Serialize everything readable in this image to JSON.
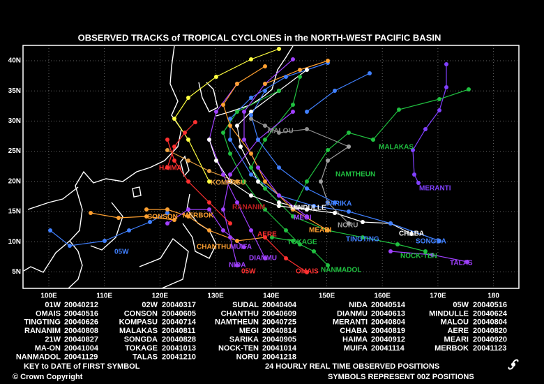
{
  "title": "OBSERVED TRACKS of TROPICAL CYCLONES in the NORTH-WEST PACIFIC BASIN",
  "lat_labels": [
    "40N",
    "35N",
    "30N",
    "25N",
    "20N",
    "15N",
    "10N",
    "5N"
  ],
  "lon_labels": [
    "100E",
    "110E",
    "120E",
    "130E",
    "140E",
    "150E",
    "160E",
    "170E",
    "180"
  ],
  "storm_labels": [
    {
      "text": "MALOU",
      "color": "#909090"
    },
    {
      "text": "MALAKAS",
      "color": "#20c040"
    },
    {
      "text": "NAMTHEUN",
      "color": "#20c040"
    },
    {
      "text": "MERANTI",
      "color": "#8040ff"
    },
    {
      "text": "HAIMA",
      "color": "#ff3030"
    },
    {
      "text": "KOMPASU",
      "color": "#e8a040"
    },
    {
      "text": "SARIKA",
      "color": "#4080ff"
    },
    {
      "text": "MINDULLE",
      "color": "#ffffff"
    },
    {
      "text": "RANANIM",
      "color": "#c02020"
    },
    {
      "text": "CONSON",
      "color": "#ffa030"
    },
    {
      "text": "MERBOK",
      "color": "#ffa030"
    },
    {
      "text": "MEGI",
      "color": "#a040ff"
    },
    {
      "text": "MEARI",
      "color": "#ffa030"
    },
    {
      "text": "NORU",
      "color": "#a0a0a0"
    },
    {
      "text": "CHABA",
      "color": "#ffffff"
    },
    {
      "text": "SONGDA",
      "color": "#4080ff"
    },
    {
      "text": "TINGTING",
      "color": "#4080ff"
    },
    {
      "text": "AERE",
      "color": "#ff3030"
    },
    {
      "text": "TOKAGE",
      "color": "#20c040"
    },
    {
      "text": "CHANTHU",
      "color": "#ffa030"
    },
    {
      "text": "MUIFA",
      "color": "#a040ff"
    },
    {
      "text": "NOCK-TEN",
      "color": "#20c040"
    },
    {
      "text": "TALAS",
      "color": "#a040ff"
    },
    {
      "text": "DIANMU",
      "color": "#a040ff"
    },
    {
      "text": "NIDA",
      "color": "#a040ff"
    },
    {
      "text": "05W",
      "color": "#ff3030"
    },
    {
      "text": "OMAIS",
      "color": "#ff3030"
    },
    {
      "text": "NANMADOL",
      "color": "#20c040"
    },
    {
      "text": "05W",
      "color": "#4080ff"
    }
  ],
  "key": {
    "rows": [
      [
        [
          "01W",
          "20040212"
        ],
        [
          "02W",
          "20040317"
        ],
        [
          "SUDAL",
          "20040404"
        ],
        [
          "NIDA",
          "20040514"
        ],
        [
          "05W",
          "20040516"
        ]
      ],
      [
        [
          "OMAIS",
          "20040516"
        ],
        [
          "CONSON",
          "20040605"
        ],
        [
          "CHANTHU",
          "20040609"
        ],
        [
          "DIANMU",
          "20040613"
        ],
        [
          "MINDULLE",
          "20040624"
        ]
      ],
      [
        [
          "TINGTING",
          "20040626"
        ],
        [
          "KOMPASU",
          "20040714"
        ],
        [
          "NAMTHEUN",
          "20040725"
        ],
        [
          "MERANTI",
          "20040804"
        ],
        [
          "MALOU",
          "20040804"
        ]
      ],
      [
        [
          "RANANIM",
          "20040808"
        ],
        [
          "MALAKAS",
          "20040811"
        ],
        [
          "MEGI",
          "20040814"
        ],
        [
          "CHABA",
          "20040819"
        ],
        [
          "AERE",
          "20040820"
        ]
      ],
      [
        [
          "21W",
          "20040827"
        ],
        [
          "SONGDA",
          "20040828"
        ],
        [
          "SARIKA",
          "20040905"
        ],
        [
          "HAIMA",
          "20040912"
        ],
        [
          "MEARI",
          "20040920"
        ]
      ],
      [
        [
          "MA-ON",
          "20041004"
        ],
        [
          "TOKAGE",
          "20041013"
        ],
        [
          "NOCK-TEN",
          "20041014"
        ],
        [
          "MUIFA",
          "20041114"
        ],
        [
          "MERBOK",
          "20041123"
        ]
      ],
      [
        [
          "NANMADOL",
          "20041129"
        ],
        [
          "TALAS",
          "20041210"
        ],
        [
          "NORU",
          "20041218"
        ]
      ]
    ]
  },
  "key_caption": "KEY to DATE of FIRST SYMBOL",
  "positions_caption": "24 HOURLY REAL TIME OBSERVED POSITIONS",
  "copyright": "© Crown Copyright",
  "symbols_caption": "SYMBOLS REPRESENT 00Z POSITIONS"
}
